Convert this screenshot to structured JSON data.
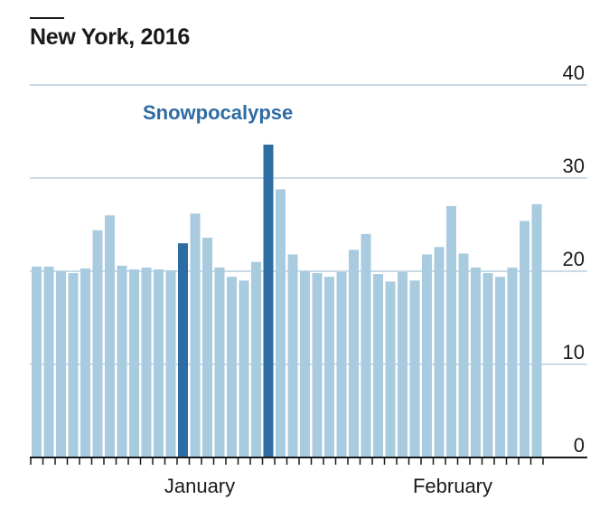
{
  "chart_data": {
    "type": "bar",
    "title": "New York, 2016",
    "annotation": "Snowpocalypse",
    "ylim": [
      0,
      40
    ],
    "yticks": [
      0,
      10,
      20,
      30,
      40
    ],
    "x_labels": [
      "January",
      "February"
    ],
    "grid": true,
    "colors": {
      "normal": "#a9cbe0",
      "highlight": "#2e6ca4",
      "grid": "#b7cfdf",
      "axis": "#1a1a1a",
      "text": "#1a1a1a"
    },
    "values": [
      20.5,
      20.5,
      20.0,
      19.8,
      20.3,
      24.4,
      26.0,
      20.6,
      20.2,
      20.4,
      20.2,
      20.1,
      23.0,
      26.2,
      23.6,
      20.4,
      19.4,
      19.0,
      21.0,
      33.6,
      28.8,
      21.8,
      20.0,
      19.8,
      19.4,
      19.9,
      22.3,
      24.0,
      19.7,
      18.9,
      19.9,
      19.0,
      21.8,
      22.6,
      27.0,
      21.9,
      20.4,
      19.8,
      19.4,
      20.4,
      25.4,
      27.2
    ],
    "highlight_indices": [
      12,
      19
    ]
  }
}
